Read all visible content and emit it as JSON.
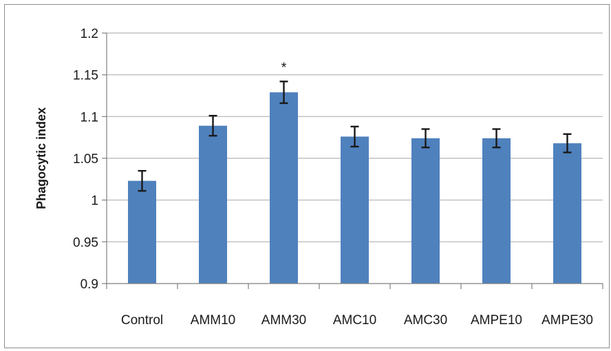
{
  "chart_data": {
    "type": "bar",
    "title": "",
    "xlabel": "",
    "ylabel": "Phagocytic index",
    "categories": [
      "Control",
      "AMM10",
      "AMM30",
      "AMC10",
      "AMC30",
      "AMPE10",
      "AMPE30"
    ],
    "values": [
      1.023,
      1.089,
      1.129,
      1.076,
      1.074,
      1.074,
      1.068
    ],
    "errors": [
      0.012,
      0.012,
      0.013,
      0.012,
      0.011,
      0.011,
      0.011
    ],
    "ylim": [
      0.9,
      1.2
    ],
    "yticks": [
      "0.9",
      "0.95",
      "1",
      "1.05",
      "1.1",
      "1.15",
      "1.2"
    ],
    "annotations": [
      {
        "category": "AMM30",
        "text": "*"
      }
    ],
    "grid": true,
    "legend": "none",
    "colors": {
      "bar": "#4f81bd",
      "grid": "#b3b3b3",
      "axis": "#7f7f7f",
      "error": "#1a1a1a"
    }
  }
}
